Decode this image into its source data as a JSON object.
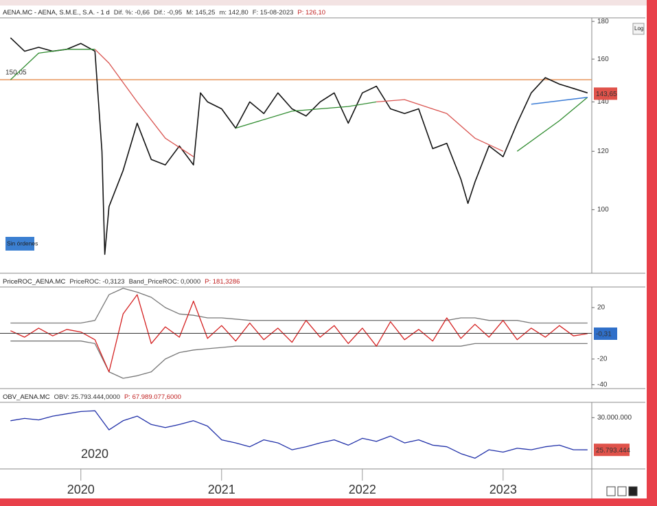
{
  "chart_data": [
    {
      "type": "line",
      "log_scale": true,
      "header": [
        "AENA.MC - AENA, S.M.E., S.A. - 1 d",
        "Dif. %: -0,66",
        "Dif.: -0,95",
        "M: 145,25",
        "m: 142,80",
        "F: 15-08-2023",
        "P: 126,10"
      ],
      "ylim": [
        82,
        182
      ],
      "yticks": [
        180,
        160,
        140,
        120,
        100
      ],
      "series": [
        {
          "color": "#111111",
          "x": [
            2019.5,
            2019.6,
            2019.7,
            2019.8,
            2019.9,
            2020.0,
            2020.1,
            2020.15,
            2020.17,
            2020.2,
            2020.3,
            2020.4,
            2020.5,
            2020.6,
            2020.7,
            2020.8,
            2020.85,
            2020.9,
            2021.0,
            2021.1,
            2021.2,
            2021.3,
            2021.4,
            2021.5,
            2021.6,
            2021.7,
            2021.8,
            2021.9,
            2022.0,
            2022.1,
            2022.2,
            2022.3,
            2022.4,
            2022.5,
            2022.6,
            2022.7,
            2022.75,
            2022.8,
            2022.9,
            2023.0,
            2023.1,
            2023.2,
            2023.3,
            2023.4,
            2023.5,
            2023.6
          ],
          "values": [
            171,
            164,
            166,
            164,
            165,
            168,
            164,
            120,
            87,
            101,
            113,
            131,
            117,
            115,
            122,
            115,
            144,
            140,
            137,
            129,
            140,
            135,
            144,
            137,
            134,
            140,
            144,
            131,
            144,
            147,
            137,
            135,
            137,
            121,
            123,
            110,
            102,
            109,
            122,
            118,
            131,
            144,
            151,
            148,
            146,
            144
          ]
        },
        {
          "color": "#2e8b2e",
          "x": [
            2019.5,
            2019.7,
            2019.9,
            2020.1,
            2020.9,
            2021.1,
            2021.5,
            2021.9,
            2022.1,
            2023.0,
            2023.1,
            2023.4,
            2023.6
          ],
          "values": [
            150,
            163,
            165,
            165,
            null,
            129,
            136,
            138,
            140,
            null,
            120,
            132,
            142
          ]
        },
        {
          "color": "#d9534f",
          "x": [
            2020.1,
            2020.2,
            2020.4,
            2020.6,
            2020.8,
            2020.9,
            2022.1,
            2022.3,
            2022.6,
            2022.8,
            2023.0
          ],
          "values": [
            165,
            158,
            140,
            125,
            118,
            null,
            140,
            141,
            135,
            125,
            120
          ]
        }
      ],
      "level": 150.05,
      "level_label": "150,05",
      "level_color": "#e8945a",
      "trendline": {
        "color": "#3a7bd5",
        "x": [
          2023.2,
          2023.6
        ],
        "values": [
          139,
          142
        ]
      },
      "last_value": 143.65,
      "last_value_label": "143,65",
      "last_color": "#e0524a",
      "log_button": "Log",
      "orders_button": "Sin órdenes"
    },
    {
      "type": "line",
      "header": [
        "PriceROC_AENA.MC",
        "PriceROC: -0,3123",
        "Band_PriceROC: 0,0000",
        "P: 181,3286"
      ],
      "ylim": [
        -43,
        36
      ],
      "yticks": [
        20,
        -20,
        -40
      ],
      "x": [
        2019.5,
        2019.6,
        2019.7,
        2019.8,
        2019.9,
        2020.0,
        2020.1,
        2020.2,
        2020.3,
        2020.4,
        2020.5,
        2020.6,
        2020.7,
        2020.8,
        2020.9,
        2021.0,
        2021.1,
        2021.2,
        2021.3,
        2021.4,
        2021.5,
        2021.6,
        2021.7,
        2021.8,
        2021.9,
        2022.0,
        2022.1,
        2022.2,
        2022.3,
        2022.4,
        2022.5,
        2022.6,
        2022.7,
        2022.8,
        2022.9,
        2023.0,
        2023.1,
        2023.2,
        2023.3,
        2023.4,
        2023.5,
        2023.6
      ],
      "series": [
        {
          "color": "#777777",
          "values": [
            8,
            8,
            8,
            8,
            8,
            8,
            10,
            30,
            35,
            32,
            28,
            20,
            15,
            14,
            12,
            12,
            11,
            10,
            10,
            10,
            10,
            10,
            10,
            10,
            10,
            10,
            10,
            10,
            10,
            10,
            10,
            10,
            12,
            12,
            10,
            10,
            10,
            8,
            8,
            8,
            8,
            8
          ]
        },
        {
          "color": "#777777",
          "values": [
            -6,
            -6,
            -6,
            -6,
            -6,
            -6,
            -8,
            -30,
            -35,
            -33,
            -30,
            -20,
            -15,
            -13,
            -12,
            -11,
            -10,
            -10,
            -10,
            -10,
            -10,
            -10,
            -10,
            -10,
            -10,
            -10,
            -10,
            -10,
            -10,
            -10,
            -10,
            -10,
            -10,
            -8,
            -8,
            -8,
            -8,
            -8,
            -8,
            -8,
            -8,
            -8
          ]
        },
        {
          "color": "#d42020",
          "values": [
            2,
            -3,
            4,
            -2,
            3,
            1,
            -5,
            -30,
            15,
            30,
            -8,
            5,
            -3,
            25,
            -4,
            6,
            -6,
            8,
            -5,
            4,
            -7,
            10,
            -3,
            6,
            -8,
            4,
            -10,
            9,
            -5,
            3,
            -6,
            12,
            -4,
            7,
            -3,
            10,
            -5,
            4,
            -3,
            6,
            -2,
            -0.31
          ]
        }
      ],
      "last_value": -0.31,
      "last_value_label": "-0,31",
      "last_color": "#2f6fc9"
    },
    {
      "type": "line",
      "header": [
        "OBV_AENA.MC",
        "OBV: 25.793.444,0000",
        "P: 67.989.077,6000"
      ],
      "ylim": [
        23300000,
        32000000
      ],
      "yticks": [
        {
          "value": 30000000,
          "label": "30.000.000"
        }
      ],
      "xlim": [
        2019.45,
        2023.63
      ],
      "xticks": [
        2020,
        2021,
        2022,
        2023
      ],
      "x": [
        2019.5,
        2019.6,
        2019.7,
        2019.8,
        2019.9,
        2020.0,
        2020.1,
        2020.2,
        2020.3,
        2020.4,
        2020.5,
        2020.6,
        2020.7,
        2020.8,
        2020.9,
        2021.0,
        2021.1,
        2021.2,
        2021.3,
        2021.4,
        2021.5,
        2021.6,
        2021.7,
        2021.8,
        2021.9,
        2022.0,
        2022.1,
        2022.2,
        2022.3,
        2022.4,
        2022.5,
        2022.6,
        2022.7,
        2022.8,
        2022.9,
        2023.0,
        2023.1,
        2023.2,
        2023.3,
        2023.4,
        2023.5,
        2023.6
      ],
      "series": [
        {
          "color": "#1f2fa8",
          "values": [
            29600000,
            29900000,
            29700000,
            30200000,
            30500000,
            30800000,
            30900000,
            28400000,
            29600000,
            30200000,
            29100000,
            28700000,
            29100000,
            29600000,
            28900000,
            27100000,
            26700000,
            26200000,
            27100000,
            26700000,
            25800000,
            26200000,
            26700000,
            27100000,
            26400000,
            27300000,
            26900000,
            27600000,
            26700000,
            27100000,
            26400000,
            26200000,
            25300000,
            24700000,
            25800000,
            25500000,
            26000000,
            25800000,
            26200000,
            26400000,
            25800000,
            25793444
          ]
        }
      ],
      "last_value": 25793444,
      "last_value_label": "25.793.444",
      "last_color": "#e0524a",
      "annotation": "2020"
    }
  ]
}
